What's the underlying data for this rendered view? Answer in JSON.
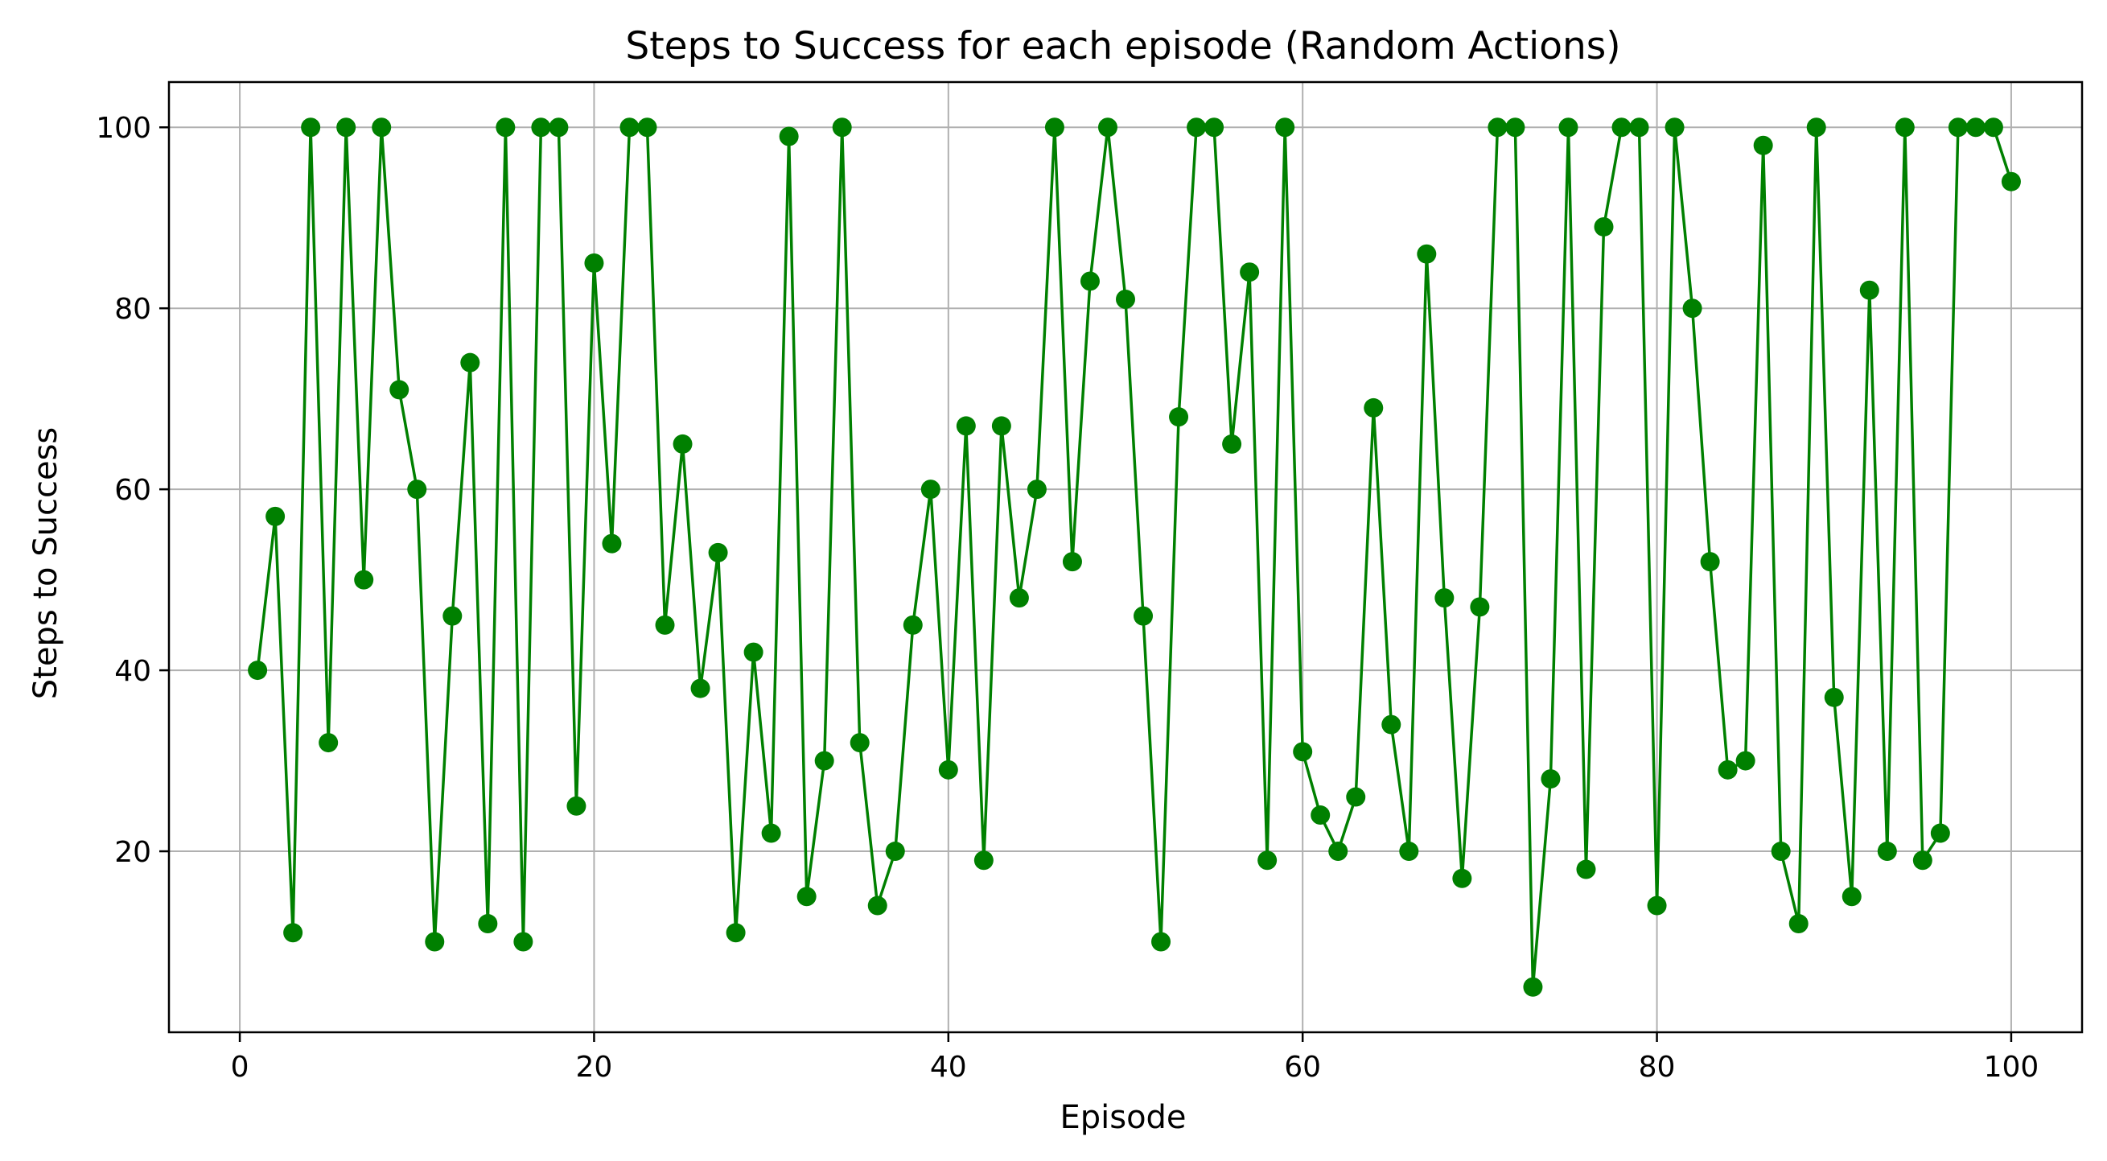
{
  "chart_data": {
    "type": "line",
    "title": "Steps to Success for each episode (Random Actions)",
    "xlabel": "Episode",
    "ylabel": "Steps to Success",
    "xlim": [
      -4,
      104
    ],
    "ylim": [
      0,
      105
    ],
    "xticks": [
      0,
      20,
      40,
      60,
      80,
      100
    ],
    "yticks": [
      20,
      40,
      60,
      80,
      100
    ],
    "grid": true,
    "legend": "none",
    "color": "#008000",
    "series": [
      {
        "x": [
          1,
          2,
          3,
          4,
          5,
          6,
          7,
          8,
          9,
          10,
          11,
          12,
          13,
          14,
          15,
          16,
          17,
          18,
          19,
          20,
          21,
          22,
          23,
          24,
          25,
          26,
          27,
          28,
          29,
          30,
          31,
          32,
          33,
          34,
          35,
          36,
          37,
          38,
          39,
          40,
          41,
          42,
          43,
          44,
          45,
          46,
          47,
          48,
          49,
          50,
          51,
          52,
          53,
          54,
          55,
          56,
          57,
          58,
          59,
          60,
          61,
          62,
          63,
          64,
          65,
          66,
          67,
          68,
          69,
          70,
          71,
          72,
          73,
          74,
          75,
          76,
          77,
          78,
          79,
          80,
          81,
          82,
          83,
          84,
          85,
          86,
          87,
          88,
          89,
          90,
          91,
          92,
          93,
          94,
          95,
          96,
          97,
          98,
          99,
          100
        ],
        "values": [
          40,
          57,
          11,
          100,
          32,
          100,
          50,
          100,
          71,
          60,
          10,
          46,
          74,
          12,
          100,
          10,
          100,
          100,
          25,
          85,
          54,
          100,
          100,
          45,
          65,
          38,
          53,
          11,
          42,
          22,
          99,
          15,
          30,
          100,
          32,
          14,
          20,
          45,
          60,
          29,
          67,
          19,
          67,
          48,
          60,
          100,
          52,
          83,
          100,
          81,
          46,
          10,
          68,
          100,
          100,
          65,
          84,
          19,
          100,
          31,
          24,
          20,
          26,
          69,
          34,
          20,
          86,
          48,
          17,
          47,
          100,
          100,
          5,
          28,
          100,
          18,
          89,
          100,
          100,
          14,
          100,
          80,
          52,
          29,
          30,
          98,
          20,
          12,
          100,
          37,
          15,
          82,
          20,
          100,
          19,
          22,
          100,
          100,
          100,
          94
        ]
      }
    ]
  }
}
